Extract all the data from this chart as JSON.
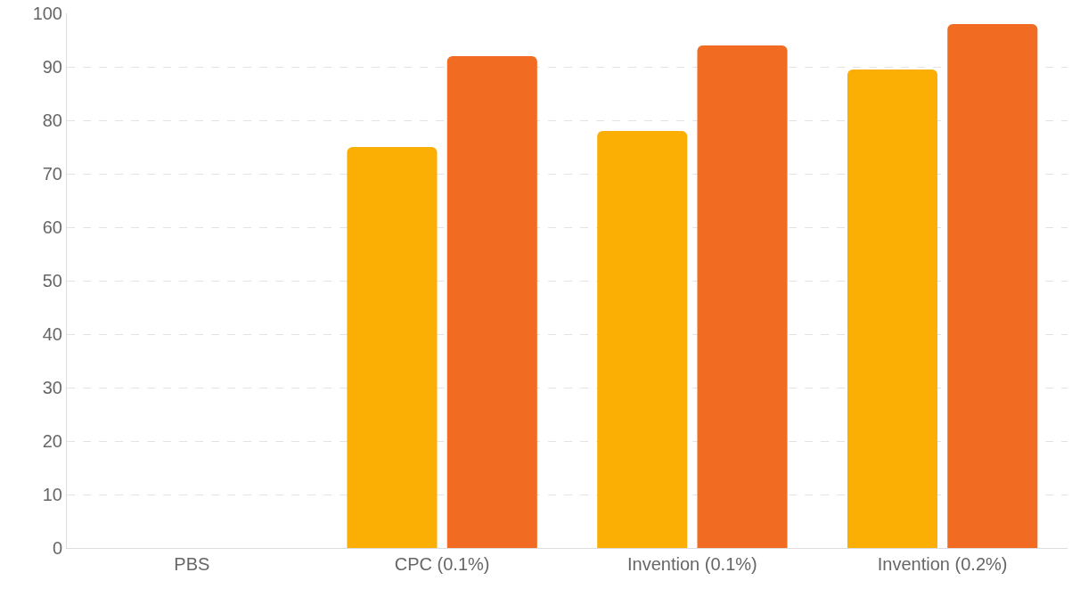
{
  "chart_data": {
    "type": "bar",
    "categories": [
      "PBS",
      "CPC (0.1%)",
      "Invention (0.1%)",
      "Invention (0.2%)"
    ],
    "series": [
      {
        "color": "#fbae03",
        "values": [
          0,
          75,
          78,
          89.5
        ]
      },
      {
        "color": "#f26b22",
        "values": [
          0,
          92,
          94,
          98
        ]
      }
    ],
    "ylim": [
      0,
      100
    ],
    "yticks": [
      0,
      10,
      20,
      30,
      40,
      50,
      60,
      70,
      80,
      90,
      100
    ],
    "grid": "y"
  }
}
